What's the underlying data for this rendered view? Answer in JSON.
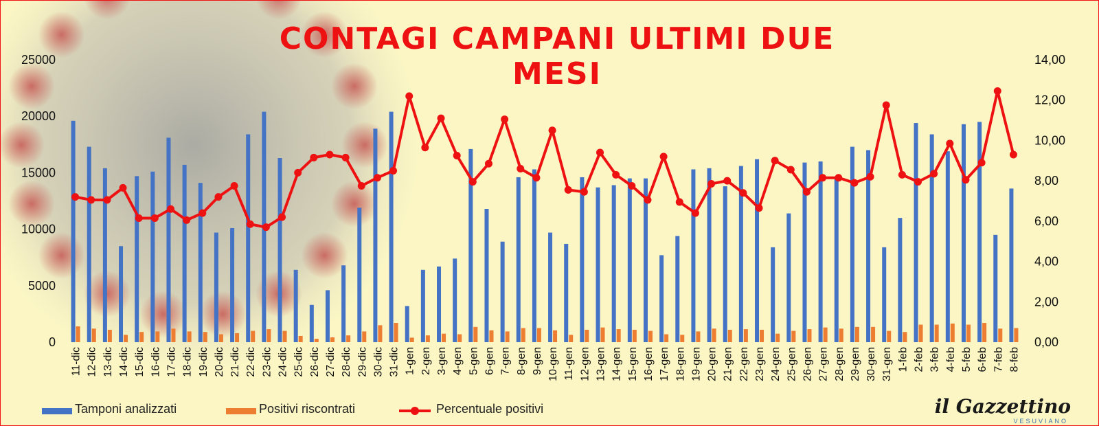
{
  "chart_data": {
    "type": "bar",
    "title": "CONTAGI CAMPANI ULTIMI DUE MESI",
    "xlabel": "",
    "ylabel": "",
    "y_left_range": [
      0,
      25000
    ],
    "y_left_ticks": [
      "0",
      "5000",
      "10000",
      "15000",
      "20000",
      "25000"
    ],
    "y_right_range": [
      0,
      14
    ],
    "y_right_ticks": [
      "0,00",
      "2,00",
      "4,00",
      "6,00",
      "8,00",
      "10,00",
      "12,00",
      "14,00"
    ],
    "grid": false,
    "legend_position": "bottom",
    "categories": [
      "11-dic",
      "12-dic",
      "13-dic",
      "14-dic",
      "15-dic",
      "16-dic",
      "17-dic",
      "18-dic",
      "19-dic",
      "20-dic",
      "21-dic",
      "22-dic",
      "23-dic",
      "24-dic",
      "25-dic",
      "26-dic",
      "27-dic",
      "28-dic",
      "29-dic",
      "30-dic",
      "31-dic",
      "1-gen",
      "2-gen",
      "3-gen",
      "4-gen",
      "5-gen",
      "6-gen",
      "7-gen",
      "8-gen",
      "9-gen",
      "10-gen",
      "11-gen",
      "12-gen",
      "13-gen",
      "14-gen",
      "15-gen",
      "16-gen",
      "17-gen",
      "18-gen",
      "19-gen",
      "20-gen",
      "21-gen",
      "22-gen",
      "23-gen",
      "24-gen",
      "25-gen",
      "26-gen",
      "27-gen",
      "28-gen",
      "29-gen",
      "30-gen",
      "31-gen",
      "1-feb",
      "2-feb",
      "3-feb",
      "4-feb",
      "5-feb",
      "6-feb",
      "7-feb",
      "8-feb"
    ],
    "series": [
      {
        "name": "Tamponi analizzati",
        "type": "bar",
        "axis": "left",
        "color": "#4472c4",
        "values": [
          19600,
          17300,
          15400,
          8500,
          14700,
          15100,
          18100,
          15700,
          14100,
          9700,
          10100,
          18400,
          20400,
          16300,
          6400,
          3300,
          4600,
          6800,
          11900,
          18900,
          20400,
          3200,
          6400,
          6700,
          7400,
          17100,
          11800,
          8900,
          14600,
          15300,
          9700,
          8700,
          14600,
          13700,
          13900,
          14500,
          14500,
          7700,
          9400,
          15300,
          15400,
          13800,
          15600,
          16200,
          8400,
          11400,
          15900,
          16000,
          14500,
          17300,
          17000,
          8400,
          11000,
          19400,
          18400,
          16900,
          19300,
          19500,
          9500,
          13600
        ]
      },
      {
        "name": "Positivi riscontrati",
        "type": "bar",
        "axis": "left",
        "color": "#ed7d31",
        "values": [
          1400,
          1200,
          1100,
          650,
          900,
          950,
          1200,
          950,
          900,
          700,
          800,
          1000,
          1150,
          1000,
          550,
          300,
          430,
          600,
          950,
          1500,
          1700,
          400,
          600,
          750,
          700,
          1350,
          1050,
          950,
          1250,
          1250,
          1050,
          650,
          1100,
          1300,
          1150,
          1100,
          1000,
          700,
          650,
          950,
          1200,
          1100,
          1150,
          1100,
          750,
          1000,
          1150,
          1300,
          1200,
          1350,
          1350,
          1000,
          900,
          1550,
          1550,
          1650,
          1550,
          1700,
          1200,
          1250
        ]
      },
      {
        "name": "Percentuale positivi",
        "type": "line",
        "axis": "right",
        "color": "#ee1111",
        "values": [
          7.2,
          7.05,
          7.05,
          7.65,
          6.15,
          6.15,
          6.6,
          6.05,
          6.4,
          7.2,
          7.75,
          5.85,
          5.7,
          6.2,
          8.4,
          9.15,
          9.3,
          9.15,
          7.75,
          8.15,
          8.5,
          12.2,
          9.65,
          11.1,
          9.25,
          7.95,
          8.85,
          11.05,
          8.6,
          8.15,
          10.5,
          7.55,
          7.45,
          9.4,
          8.3,
          7.75,
          7.05,
          9.2,
          6.95,
          6.4,
          7.85,
          8.0,
          7.4,
          6.65,
          9.0,
          8.55,
          7.45,
          8.15,
          8.15,
          7.9,
          8.2,
          11.75,
          8.3,
          7.95,
          8.35,
          9.85,
          8.05,
          8.9,
          12.45,
          9.3
        ]
      }
    ]
  },
  "logo": {
    "name": "il Gazzettino",
    "sub": "VESUVIANO"
  },
  "colors": {
    "background": "#fbf6c4",
    "title": "#ee1111",
    "frame": "#ee1111"
  }
}
